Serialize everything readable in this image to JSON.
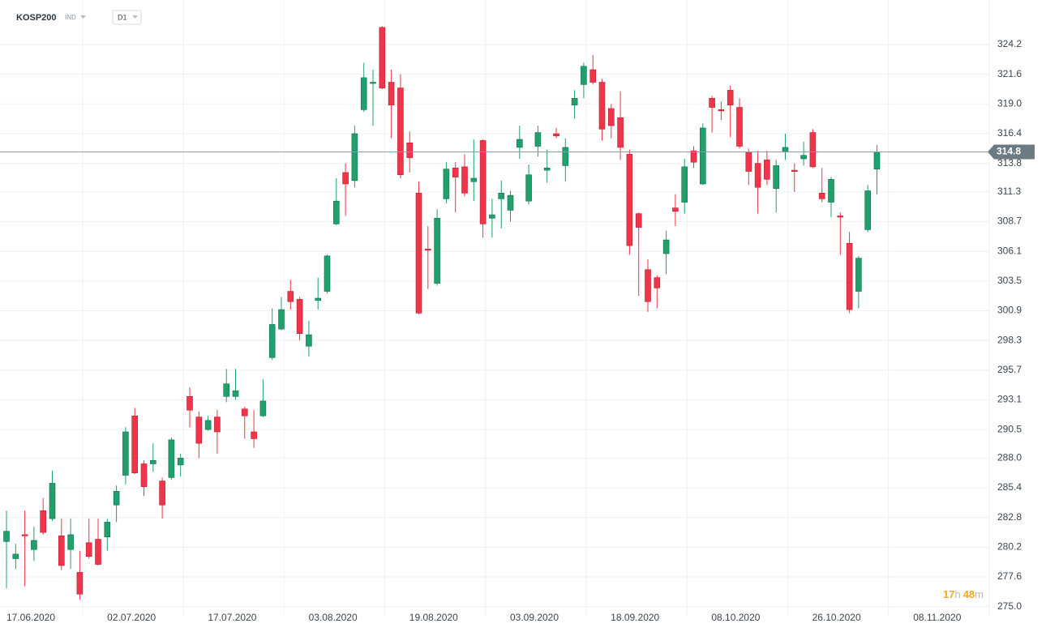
{
  "symbol": "KOSP200",
  "market": "IND",
  "interval": "D1",
  "timer": [
    "17",
    "h",
    "48",
    "m"
  ],
  "chart_data": {
    "type": "candlestick",
    "up_color": "#1fa06d",
    "down_color": "#f0344a",
    "grid": true,
    "ylim": [
      274.2,
      328.1
    ],
    "yticks": [
      {
        "value": 275,
        "label": "275.0"
      },
      277.6,
      280.2,
      282.8,
      285.4,
      {
        "value": 288,
        "label": "288.0"
      },
      290.5,
      293.1,
      295.7,
      298.3,
      300.9,
      303.5,
      306.1,
      308.7,
      311.3,
      313.8,
      316.4,
      {
        "value": 319,
        "label": "319.0"
      },
      321.6,
      324.2
    ],
    "xticks": [
      "17.06.2020",
      "02.07.2020",
      "17.07.2020",
      "03.08.2020",
      "19.08.2020",
      "03.09.2020",
      "18.09.2020",
      "08.10.2020",
      "26.10.2020",
      "08.11.2020"
    ],
    "open": [
      280.7,
      279.2,
      281.3,
      280.0,
      283.4,
      282.7,
      281.2,
      280.0,
      278.0,
      280.6,
      280.9,
      281.1,
      283.9,
      286.5,
      291.7,
      287.5,
      287.5,
      286.0,
      286.3,
      287.4,
      293.4,
      291.6,
      290.5,
      291.6,
      293.4,
      293.4,
      292.3,
      290.3,
      291.7,
      296.8,
      299.3,
      302.6,
      301.9,
      297.8,
      301.8,
      302.6,
      308.5,
      313.0,
      312.3,
      318.5,
      320.8,
      325.7,
      320.9,
      320.4,
      315.6,
      311.2,
      306.3,
      303.3,
      310.7,
      313.4,
      313.5,
      312.2,
      315.8,
      309.0,
      310.7,
      309.7,
      315.2,
      310.5,
      315.3,
      313.2,
      316.4,
      313.6,
      318.9,
      320.7,
      322.0,
      320.9,
      318.6,
      317.8,
      314.6,
      309.4,
      304.5,
      303.8,
      305.9,
      309.9,
      310.4,
      314.9,
      312.0,
      319.5,
      318.5,
      320.2,
      318.7,
      314.8,
      313.8,
      314.1,
      311.6,
      314.8,
      313.2,
      314.2,
      316.5,
      311.2,
      310.4,
      309.2,
      306.8,
      302.6,
      308.0,
      313.3
    ],
    "high": [
      283.4,
      280.5,
      283.4,
      282.0,
      284.5,
      286.9,
      282.7,
      282.7,
      279.9,
      282.7,
      282.7,
      282.7,
      285.6,
      290.7,
      292.4,
      287.8,
      289.3,
      286.3,
      289.8,
      288.4,
      294.2,
      292.1,
      291.7,
      292.2,
      295.8,
      295.8,
      292.5,
      292.2,
      294.9,
      301.1,
      302.1,
      303.6,
      302.1,
      300.0,
      303.8,
      305.8,
      312.5,
      313.8,
      317.1,
      322.6,
      322.0,
      325.8,
      322.0,
      321.6,
      316.6,
      312.2,
      308.3,
      309.8,
      313.9,
      313.9,
      314.6,
      315.9,
      315.9,
      310.7,
      312.3,
      311.4,
      317.1,
      313.7,
      317.1,
      315.0,
      316.9,
      316.0,
      320.2,
      322.6,
      323.3,
      321.2,
      319.0,
      320.1,
      315.0,
      309.5,
      305.4,
      304.0,
      307.9,
      311.1,
      314.2,
      315.3,
      317.3,
      319.7,
      319.2,
      320.6,
      319.5,
      315.1,
      314.9,
      314.9,
      314.1,
      316.4,
      313.8,
      315.7,
      316.8,
      313.4,
      312.6,
      309.5,
      307.8,
      305.7,
      311.9,
      315.4
    ],
    "low": [
      276.6,
      278.3,
      276.8,
      279.0,
      281.3,
      282.5,
      278.2,
      278.3,
      275.6,
      279.2,
      278.6,
      279.9,
      282.4,
      285.7,
      286.6,
      284.7,
      286.8,
      282.7,
      286.1,
      286.4,
      290.7,
      288.0,
      290.4,
      288.4,
      292.9,
      293.1,
      289.7,
      288.9,
      291.6,
      296.6,
      299.2,
      301.0,
      298.3,
      296.9,
      301.0,
      302.4,
      308.4,
      309.2,
      311.7,
      318.3,
      317.1,
      320.3,
      316.0,
      312.5,
      313.0,
      300.6,
      302.8,
      303.1,
      310.3,
      309.5,
      310.9,
      310.5,
      307.3,
      307.3,
      308.1,
      308.7,
      314.2,
      310.2,
      314.4,
      312.1,
      316.0,
      312.2,
      317.7,
      319.5,
      320.7,
      315.8,
      316.0,
      314.1,
      305.8,
      302.2,
      300.8,
      301.1,
      304.1,
      308.3,
      309.4,
      313.4,
      311.9,
      316.5,
      317.6,
      316.1,
      315.1,
      311.9,
      309.4,
      311.9,
      309.5,
      314.1,
      311.3,
      313.6,
      313.4,
      310.4,
      309.1,
      305.8,
      300.7,
      301.1,
      307.8,
      311.1
    ],
    "close": [
      281.6,
      279.6,
      281.2,
      280.8,
      281.5,
      285.8,
      278.6,
      281.3,
      276.1,
      279.4,
      278.7,
      282.4,
      285.1,
      290.3,
      286.7,
      285.5,
      287.8,
      283.9,
      289.6,
      288.0,
      292.2,
      289.3,
      291.3,
      290.3,
      294.5,
      293.9,
      291.7,
      289.7,
      293.0,
      299.7,
      301.0,
      301.7,
      298.9,
      298.8,
      302.0,
      305.7,
      310.5,
      312.0,
      316.4,
      321.3,
      320.9,
      320.4,
      318.9,
      312.8,
      314.3,
      300.7,
      306.2,
      309.0,
      313.3,
      312.6,
      311.2,
      312.5,
      308.5,
      309.3,
      311.2,
      311.0,
      315.9,
      312.8,
      316.5,
      313.4,
      316.2,
      315.2,
      319.5,
      322.3,
      320.9,
      316.8,
      317.1,
      315.2,
      306.6,
      308.2,
      301.7,
      302.9,
      307.1,
      309.6,
      313.5,
      313.9,
      316.9,
      318.7,
      318.4,
      318.9,
      315.3,
      313.1,
      311.7,
      312.4,
      313.6,
      315.2,
      313.1,
      314.5,
      313.5,
      310.7,
      312.4,
      309.1,
      301.0,
      305.5,
      311.4,
      314.8
    ]
  }
}
